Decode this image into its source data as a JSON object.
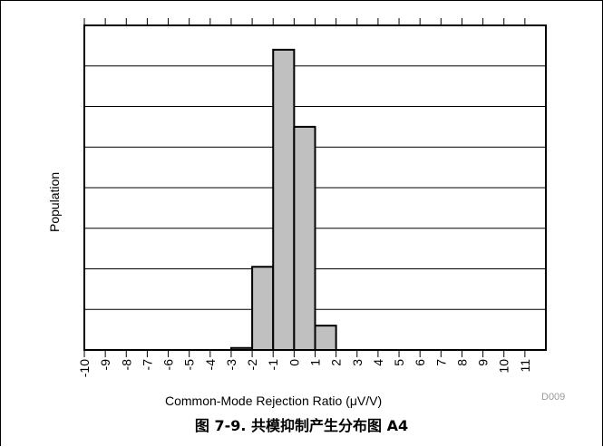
{
  "caption": "图 7-9. 共模抑制产生分布图 A4",
  "chart_data": {
    "type": "bar",
    "title": "",
    "xlabel": "Common-Mode Rejection Ratio (μV/V)",
    "ylabel": "Population",
    "categories": [
      "-3",
      "-2",
      "-1",
      "0",
      "1"
    ],
    "bin_edges": [
      -3,
      -2,
      -1,
      0,
      1,
      2
    ],
    "values": [
      0.5,
      20.5,
      74,
      55,
      6
    ],
    "x_ticks": [
      "-10",
      "-9",
      "-8",
      "-7",
      "-6",
      "-5",
      "-4",
      "-3",
      "-2",
      "-1",
      "0",
      "1",
      "2",
      "3",
      "4",
      "5",
      "6",
      "7",
      "8",
      "9",
      "10",
      "11"
    ],
    "xlim": [
      -10,
      12
    ],
    "ylim": [
      0,
      80
    ],
    "grid": true,
    "bar_color": "#c0c0c0",
    "source_code": "D009"
  }
}
